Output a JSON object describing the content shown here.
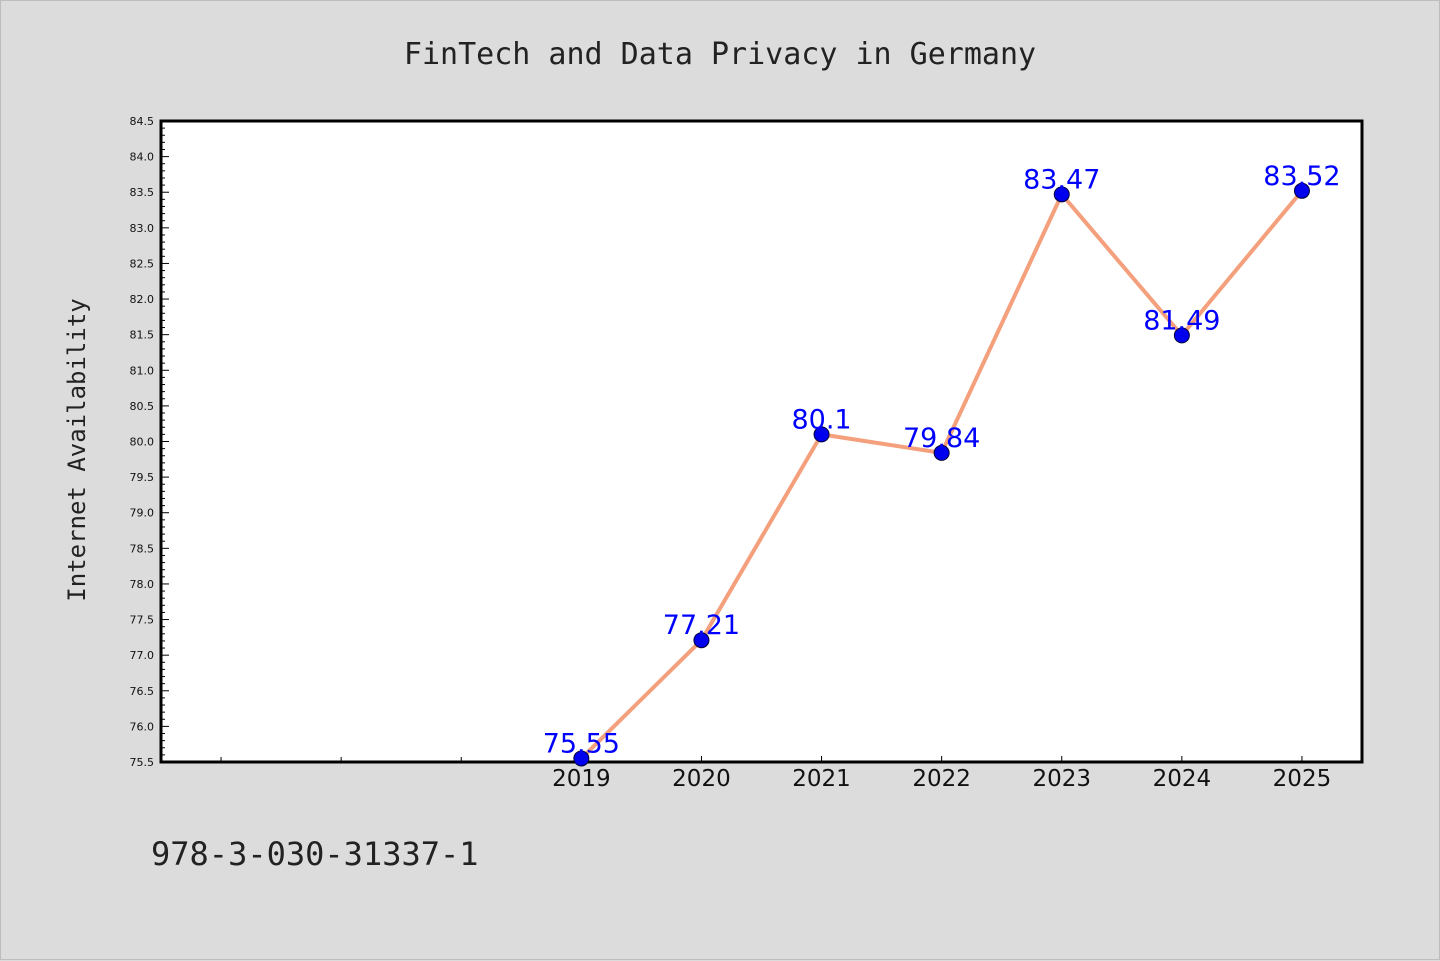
{
  "chart_data": {
    "type": "line",
    "title": "FinTech and Data Privacy in Germany",
    "xlabel": "",
    "ylabel": "Internet Availability",
    "categories": [
      "2019",
      "2020",
      "2021",
      "2022",
      "2023",
      "2024",
      "2025"
    ],
    "series": [
      {
        "values": [
          75.55,
          77.21,
          80.1,
          79.84,
          83.47,
          81.49,
          83.52
        ],
        "labels": [
          "75.55",
          "77.21",
          "80.1",
          "79.84",
          "83.47",
          "81.49",
          "83.52"
        ],
        "line_color": "#f4a07c",
        "marker_color": "#0000ee"
      }
    ],
    "ylim": [
      75.5,
      84.5
    ],
    "yticks": [
      "75.5",
      "76.0",
      "76.5",
      "77.0",
      "77.5",
      "78.0",
      "78.5",
      "79.0",
      "79.5",
      "80.0",
      "80.5",
      "81.0",
      "81.5",
      "82.0",
      "82.5",
      "83.0",
      "83.5",
      "84.0",
      "84.5"
    ],
    "x_range": [
      2015.5,
      2025.5
    ],
    "grid": false,
    "legend": "none",
    "data_label_color": "#0000ff"
  },
  "footnote": "978-3-030-31337-1"
}
